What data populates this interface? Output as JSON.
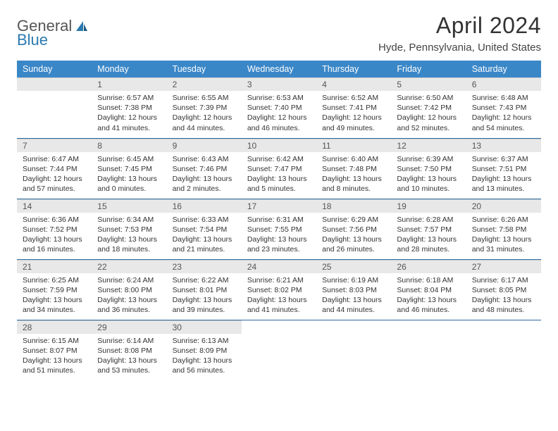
{
  "logo": {
    "primary": "General",
    "secondary": "Blue"
  },
  "title": "April 2024",
  "location": "Hyde, Pennsylvania, United States",
  "colors": {
    "header_bg": "#3a87c8",
    "header_text": "#ffffff",
    "daynum_bg": "#e8e8e8",
    "border": "#2a6aa0",
    "logo_blue": "#2a7ab0"
  },
  "weekdays": [
    "Sunday",
    "Monday",
    "Tuesday",
    "Wednesday",
    "Thursday",
    "Friday",
    "Saturday"
  ],
  "weeks": [
    [
      null,
      {
        "n": "1",
        "sr": "6:57 AM",
        "ss": "7:38 PM",
        "dl": "12 hours and 41 minutes."
      },
      {
        "n": "2",
        "sr": "6:55 AM",
        "ss": "7:39 PM",
        "dl": "12 hours and 44 minutes."
      },
      {
        "n": "3",
        "sr": "6:53 AM",
        "ss": "7:40 PM",
        "dl": "12 hours and 46 minutes."
      },
      {
        "n": "4",
        "sr": "6:52 AM",
        "ss": "7:41 PM",
        "dl": "12 hours and 49 minutes."
      },
      {
        "n": "5",
        "sr": "6:50 AM",
        "ss": "7:42 PM",
        "dl": "12 hours and 52 minutes."
      },
      {
        "n": "6",
        "sr": "6:48 AM",
        "ss": "7:43 PM",
        "dl": "12 hours and 54 minutes."
      }
    ],
    [
      {
        "n": "7",
        "sr": "6:47 AM",
        "ss": "7:44 PM",
        "dl": "12 hours and 57 minutes."
      },
      {
        "n": "8",
        "sr": "6:45 AM",
        "ss": "7:45 PM",
        "dl": "13 hours and 0 minutes."
      },
      {
        "n": "9",
        "sr": "6:43 AM",
        "ss": "7:46 PM",
        "dl": "13 hours and 2 minutes."
      },
      {
        "n": "10",
        "sr": "6:42 AM",
        "ss": "7:47 PM",
        "dl": "13 hours and 5 minutes."
      },
      {
        "n": "11",
        "sr": "6:40 AM",
        "ss": "7:48 PM",
        "dl": "13 hours and 8 minutes."
      },
      {
        "n": "12",
        "sr": "6:39 AM",
        "ss": "7:50 PM",
        "dl": "13 hours and 10 minutes."
      },
      {
        "n": "13",
        "sr": "6:37 AM",
        "ss": "7:51 PM",
        "dl": "13 hours and 13 minutes."
      }
    ],
    [
      {
        "n": "14",
        "sr": "6:36 AM",
        "ss": "7:52 PM",
        "dl": "13 hours and 16 minutes."
      },
      {
        "n": "15",
        "sr": "6:34 AM",
        "ss": "7:53 PM",
        "dl": "13 hours and 18 minutes."
      },
      {
        "n": "16",
        "sr": "6:33 AM",
        "ss": "7:54 PM",
        "dl": "13 hours and 21 minutes."
      },
      {
        "n": "17",
        "sr": "6:31 AM",
        "ss": "7:55 PM",
        "dl": "13 hours and 23 minutes."
      },
      {
        "n": "18",
        "sr": "6:29 AM",
        "ss": "7:56 PM",
        "dl": "13 hours and 26 minutes."
      },
      {
        "n": "19",
        "sr": "6:28 AM",
        "ss": "7:57 PM",
        "dl": "13 hours and 28 minutes."
      },
      {
        "n": "20",
        "sr": "6:26 AM",
        "ss": "7:58 PM",
        "dl": "13 hours and 31 minutes."
      }
    ],
    [
      {
        "n": "21",
        "sr": "6:25 AM",
        "ss": "7:59 PM",
        "dl": "13 hours and 34 minutes."
      },
      {
        "n": "22",
        "sr": "6:24 AM",
        "ss": "8:00 PM",
        "dl": "13 hours and 36 minutes."
      },
      {
        "n": "23",
        "sr": "6:22 AM",
        "ss": "8:01 PM",
        "dl": "13 hours and 39 minutes."
      },
      {
        "n": "24",
        "sr": "6:21 AM",
        "ss": "8:02 PM",
        "dl": "13 hours and 41 minutes."
      },
      {
        "n": "25",
        "sr": "6:19 AM",
        "ss": "8:03 PM",
        "dl": "13 hours and 44 minutes."
      },
      {
        "n": "26",
        "sr": "6:18 AM",
        "ss": "8:04 PM",
        "dl": "13 hours and 46 minutes."
      },
      {
        "n": "27",
        "sr": "6:17 AM",
        "ss": "8:05 PM",
        "dl": "13 hours and 48 minutes."
      }
    ],
    [
      {
        "n": "28",
        "sr": "6:15 AM",
        "ss": "8:07 PM",
        "dl": "13 hours and 51 minutes."
      },
      {
        "n": "29",
        "sr": "6:14 AM",
        "ss": "8:08 PM",
        "dl": "13 hours and 53 minutes."
      },
      {
        "n": "30",
        "sr": "6:13 AM",
        "ss": "8:09 PM",
        "dl": "13 hours and 56 minutes."
      },
      null,
      null,
      null,
      null
    ]
  ],
  "labels": {
    "sunrise": "Sunrise:",
    "sunset": "Sunset:",
    "daylight": "Daylight:"
  }
}
